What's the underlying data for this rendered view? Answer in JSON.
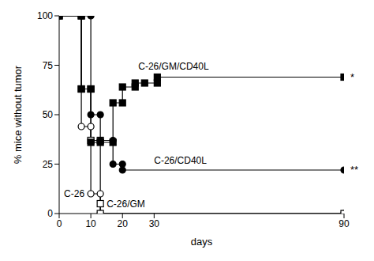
{
  "chart_data": {
    "type": "line",
    "x_label": "days",
    "y_label": "% mice without tumor",
    "xlim": [
      0,
      90
    ],
    "xticks": [
      0,
      10,
      20,
      30,
      90
    ],
    "ylim": [
      0,
      100
    ],
    "yticks": [
      0,
      25,
      50,
      75,
      100
    ],
    "grid": false,
    "line_style": "step",
    "series": [
      {
        "name": "C-26",
        "color": "#000000",
        "marker": "open-circle",
        "x": [
          0,
          7,
          7,
          10,
          10,
          13,
          13,
          90
        ],
        "values": [
          100,
          100,
          44,
          44,
          10,
          10,
          0,
          0
        ]
      },
      {
        "name": "C-26/GM",
        "color": "#000000",
        "marker": "open-square",
        "x": [
          0,
          7,
          7,
          10,
          10,
          13,
          13,
          13,
          90
        ],
        "values": [
          100,
          100,
          63,
          63,
          37,
          37,
          5,
          0,
          0
        ]
      },
      {
        "name": "C-26/CD40L",
        "color": "#000000",
        "marker": "filled-circle",
        "annotation": "**",
        "x": [
          0,
          10,
          10,
          13,
          13,
          17,
          17,
          20,
          20,
          90
        ],
        "values": [
          100,
          100,
          50,
          50,
          37,
          37,
          25,
          25,
          22,
          22
        ]
      },
      {
        "name": "C-26/GM/CD40L",
        "color": "#000000",
        "marker": "filled-square",
        "annotation": "*",
        "x": [
          0,
          7,
          7,
          10,
          10,
          13,
          17,
          17,
          20,
          20,
          24,
          24,
          27,
          31,
          31,
          90
        ],
        "values": [
          100,
          100,
          63,
          63,
          36,
          36,
          36,
          56,
          56,
          64,
          64,
          66,
          66,
          66,
          69,
          69
        ]
      }
    ]
  }
}
